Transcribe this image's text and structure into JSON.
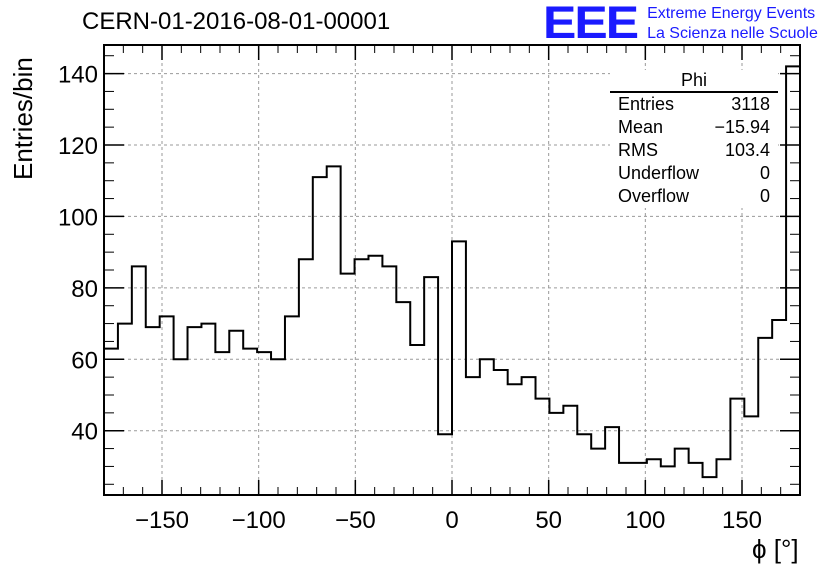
{
  "header": {
    "run_title": "CERN-01-2016-08-01-00001",
    "logo_mark": "EEE",
    "logo_line1": "Extreme Energy Events",
    "logo_line2": "La Scienza nelle Scuole",
    "logo_color": "#1a1aff"
  },
  "stats_box": {
    "title": "Phi",
    "rows": [
      {
        "label": "Entries",
        "value": "3118"
      },
      {
        "label": "Mean",
        "value": "−15.94"
      },
      {
        "label": "RMS",
        "value": "103.4"
      },
      {
        "label": "Underflow",
        "value": "0"
      },
      {
        "label": "Overflow",
        "value": "0"
      }
    ]
  },
  "chart_data": {
    "type": "bar",
    "style": "step-histogram",
    "xlabel": "ϕ [°]",
    "ylabel": "Entries/bin",
    "xlim": [
      -180,
      180
    ],
    "ylim": [
      22,
      148
    ],
    "grid": true,
    "bin_width": 7.2,
    "x_ticks": [
      -150,
      -100,
      -50,
      0,
      50,
      100,
      150
    ],
    "x_tick_labels": [
      "−150",
      "−100",
      "−50",
      "0",
      "50",
      "100",
      "150"
    ],
    "y_ticks": [
      40,
      60,
      80,
      100,
      120,
      140
    ],
    "y_tick_labels": [
      "40",
      "60",
      "80",
      "100",
      "120",
      "140"
    ],
    "values": [
      63,
      70,
      86,
      69,
      72,
      60,
      69,
      70,
      62,
      68,
      63,
      62,
      60,
      72,
      88,
      111,
      114,
      84,
      88,
      89,
      86,
      76,
      64,
      83,
      39,
      93,
      55,
      60,
      57,
      53,
      55,
      49,
      45,
      47,
      39,
      35,
      41,
      31,
      31,
      32,
      30,
      35,
      31,
      27,
      32,
      49,
      44,
      66,
      71,
      142
    ]
  }
}
